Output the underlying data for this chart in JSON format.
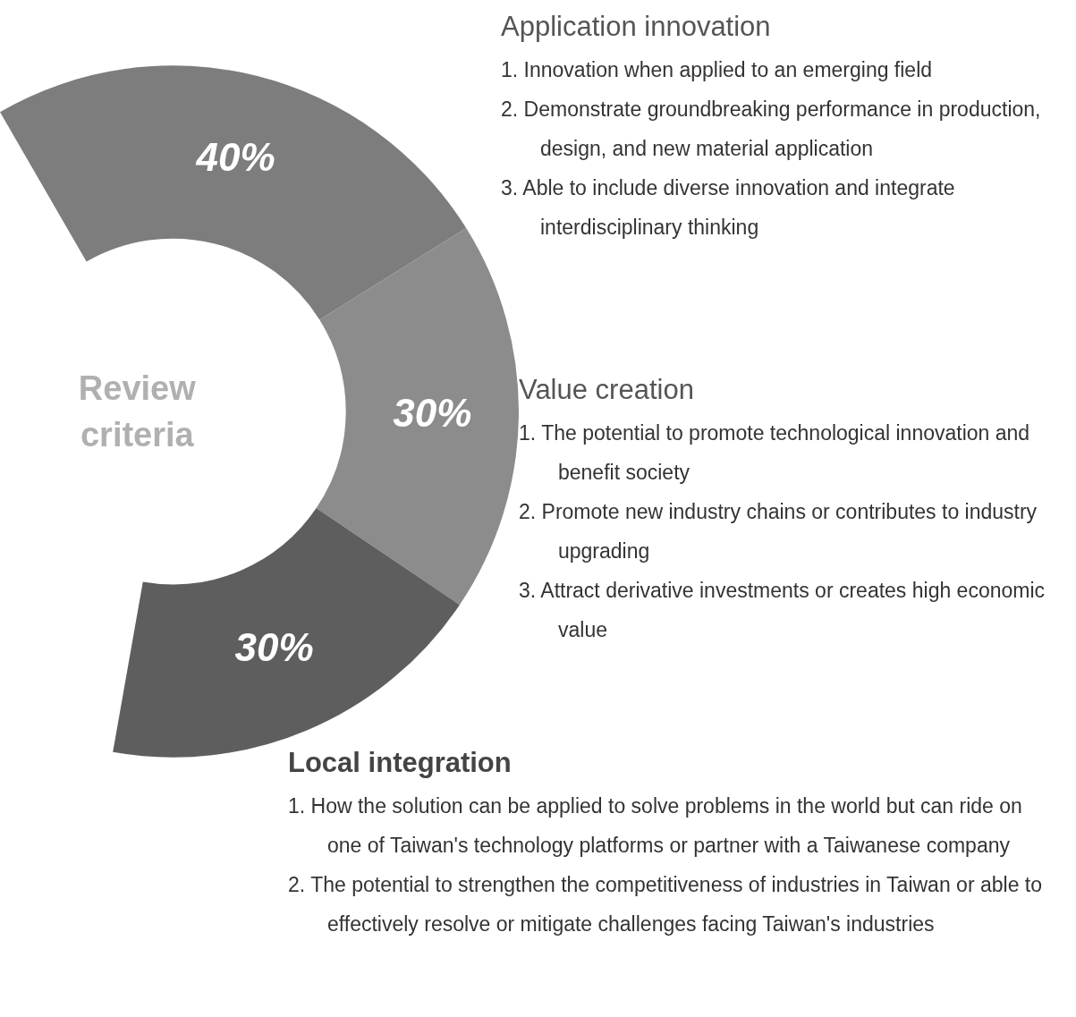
{
  "chart_data": {
    "type": "donut",
    "title": "Review criteria",
    "categories": [
      "Application innovation",
      "Value creation",
      "Local integration"
    ],
    "values": [
      40,
      30,
      30
    ],
    "colors": [
      "#7d7d7d",
      "#8c8c8c",
      "#5e5e5e"
    ],
    "value_labels": [
      "40%",
      "30%",
      "30%"
    ],
    "annotations": [
      "1. Innovation when applied to an emerging field",
      "2. Demonstrate groundbreaking performance in production, design, and new material application",
      "3. Able to include diverse innovation and integrate interdisciplinary thinking",
      "1. The potential to promote technological innovation and benefit society",
      "2. Promote new industry chains or contributes to industry upgrading",
      "3. Attract derivative investments or creates high economic value",
      "1. How the solution can be applied to solve problems in the world but can ride on one of Taiwan's technology platforms or partner with a Taiwanese company",
      "2. The potential to strengthen the competitiveness of industries in Taiwan or able to effectively resolve or mitigate challenges facing Taiwan's industries"
    ]
  }
}
